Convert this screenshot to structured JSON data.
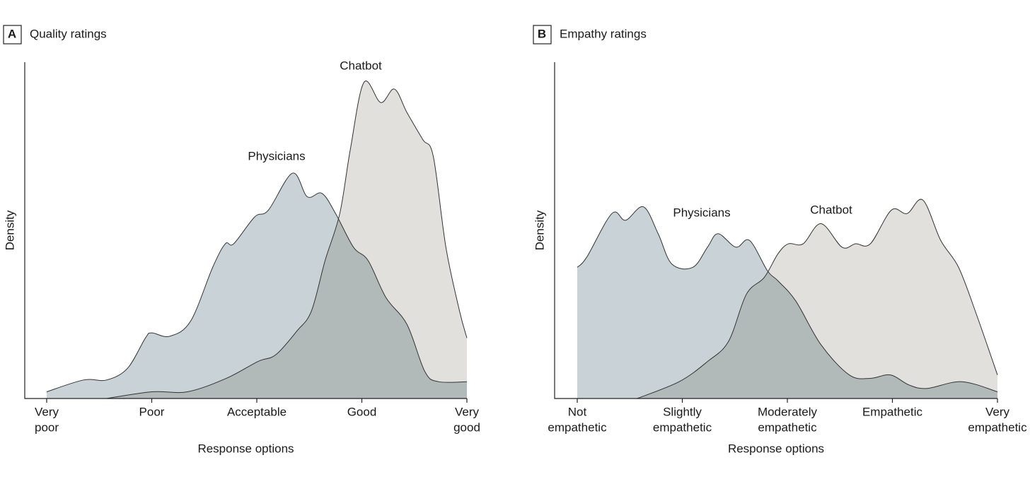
{
  "chart_data": [
    {
      "type": "density",
      "panel": "A",
      "title": "Quality ratings",
      "ylabel": "Density",
      "xlabel": "Response options",
      "xlim": [
        1,
        5
      ],
      "ylim": [
        0,
        1
      ],
      "xticks": [
        {
          "value": 1,
          "label": [
            "Very",
            "poor"
          ]
        },
        {
          "value": 2,
          "label": [
            "Poor"
          ]
        },
        {
          "value": 3,
          "label": [
            "Acceptable"
          ]
        },
        {
          "value": 4,
          "label": [
            "Good"
          ]
        },
        {
          "value": 5,
          "label": [
            "Very",
            "good"
          ]
        }
      ],
      "series": [
        {
          "name": "Physicians",
          "color": "#c9d3d7",
          "x": [
            1.0,
            1.35,
            1.57,
            1.77,
            1.94,
            2.0,
            2.17,
            2.37,
            2.58,
            2.7,
            2.78,
            2.98,
            3.11,
            3.34,
            3.48,
            3.62,
            3.75,
            3.92,
            4.06,
            4.23,
            4.43,
            4.6,
            4.73,
            5.0
          ],
          "values": [
            0.02,
            0.055,
            0.055,
            0.09,
            0.18,
            0.195,
            0.185,
            0.23,
            0.39,
            0.46,
            0.46,
            0.54,
            0.56,
            0.67,
            0.6,
            0.61,
            0.55,
            0.45,
            0.41,
            0.3,
            0.22,
            0.08,
            0.05,
            0.05
          ]
        },
        {
          "name": "Chatbot",
          "color": "#e1e0dc",
          "x": [
            1.57,
            2.0,
            2.34,
            2.71,
            3.01,
            3.18,
            3.38,
            3.52,
            3.65,
            3.79,
            3.89,
            4.02,
            4.18,
            4.31,
            4.43,
            4.58,
            4.68,
            4.8,
            4.93,
            5.0
          ],
          "values": [
            0.0,
            0.02,
            0.02,
            0.06,
            0.11,
            0.13,
            0.2,
            0.26,
            0.41,
            0.55,
            0.74,
            0.94,
            0.88,
            0.92,
            0.85,
            0.77,
            0.72,
            0.45,
            0.26,
            0.18
          ]
        }
      ]
    },
    {
      "type": "density",
      "panel": "B",
      "title": "Empathy ratings",
      "ylabel": "Density",
      "xlabel": "Response options",
      "xlim": [
        1,
        5
      ],
      "ylim": [
        0,
        1
      ],
      "xticks": [
        {
          "value": 1,
          "label": [
            "Not",
            "empathetic"
          ]
        },
        {
          "value": 2,
          "label": [
            "Slightly",
            "empathetic"
          ]
        },
        {
          "value": 3,
          "label": [
            "Moderately",
            "empathetic"
          ]
        },
        {
          "value": 4,
          "label": [
            "Empathetic"
          ]
        },
        {
          "value": 5,
          "label": [
            "Very",
            "empathetic"
          ]
        }
      ],
      "series": [
        {
          "name": "Physicians",
          "color": "#c9d3d7",
          "x": [
            1.0,
            1.09,
            1.33,
            1.46,
            1.63,
            1.77,
            1.9,
            2.1,
            2.24,
            2.34,
            2.51,
            2.64,
            2.81,
            2.91,
            3.08,
            3.32,
            3.59,
            3.79,
            3.98,
            4.16,
            4.33,
            4.66,
            5.0
          ],
          "values": [
            0.39,
            0.42,
            0.55,
            0.53,
            0.57,
            0.49,
            0.4,
            0.39,
            0.45,
            0.49,
            0.45,
            0.47,
            0.38,
            0.35,
            0.29,
            0.16,
            0.07,
            0.06,
            0.07,
            0.04,
            0.03,
            0.05,
            0.02
          ]
        },
        {
          "name": "Chatbot",
          "color": "#e1e0dc",
          "x": [
            1.57,
            1.97,
            2.24,
            2.44,
            2.61,
            2.78,
            2.91,
            3.01,
            3.15,
            3.32,
            3.52,
            3.65,
            3.79,
            3.99,
            4.14,
            4.29,
            4.46,
            4.63,
            4.8,
            5.0
          ],
          "values": [
            0.0,
            0.05,
            0.11,
            0.17,
            0.31,
            0.36,
            0.43,
            0.46,
            0.46,
            0.52,
            0.45,
            0.46,
            0.46,
            0.56,
            0.55,
            0.59,
            0.47,
            0.39,
            0.25,
            0.07
          ]
        }
      ]
    }
  ]
}
